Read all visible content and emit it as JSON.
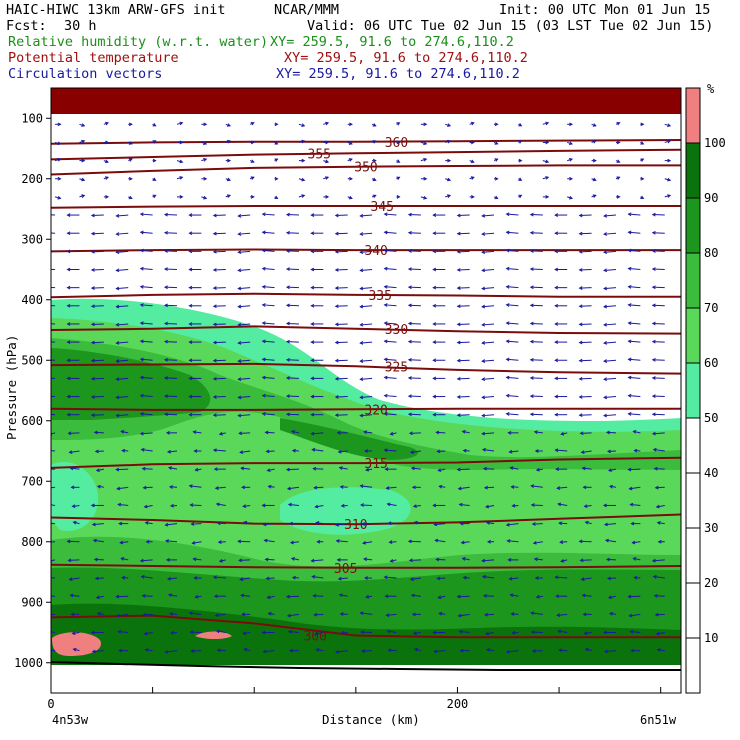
{
  "header": {
    "model": "HAIC-HIWC 13km ARW-GFS init",
    "org": "NCAR/MMM",
    "init": "Init: 00 UTC Mon 01 Jun 15",
    "fcst_label": "Fcst:",
    "fcst_value": "30 h",
    "valid": "Valid: 06 UTC Tue 02 Jun 15 (03 LST Tue 02 Jun 15)",
    "fields": [
      {
        "name": "Relative humidity (w.r.t. water)",
        "xy": "XY= 259.5, 91.6 to 274.6,110.2",
        "color": "#1a8f1a"
      },
      {
        "name": "Potential temperature",
        "xy": "XY= 259.5, 91.6 to 274.6,110.2",
        "color": "#a01010"
      },
      {
        "name": "Circulation vectors",
        "xy": "XY= 259.5, 91.6 to 274.6,110.2",
        "color": "#1a1aa0"
      }
    ]
  },
  "chart_data": {
    "type": "cross-section",
    "xlabel": "Distance (km)",
    "ylabel": "Pressure (hPa)",
    "x_ticks": [
      0,
      200
    ],
    "x_range": [
      0,
      310
    ],
    "y_ticks": [
      100,
      200,
      300,
      400,
      500,
      600,
      700,
      800,
      900,
      1000
    ],
    "y_range": [
      50,
      1050
    ],
    "x_end_labels": {
      "left": "4n53w",
      "right": "6n51w"
    },
    "humidity_colorbar": {
      "unit": "%",
      "levels": [
        10,
        20,
        30,
        40,
        50,
        60,
        70,
        80,
        90,
        100
      ],
      "colors": [
        "#ffffff",
        "#ffffff",
        "#ffffff",
        "#ffffff",
        "#ffffff",
        "#54eca0",
        "#5ad85a",
        "#3cbc3c",
        "#1c961c",
        "#0b730b",
        "#f08080"
      ]
    },
    "theta_contours": [
      {
        "value": 360,
        "label_x": 170,
        "points": [
          [
            0,
            142
          ],
          [
            50,
            140
          ],
          [
            100,
            139
          ],
          [
            150,
            139
          ],
          [
            200,
            138
          ],
          [
            250,
            137
          ],
          [
            310,
            136
          ]
        ]
      },
      {
        "value": 355,
        "label_x": 132,
        "points": [
          [
            0,
            168
          ],
          [
            50,
            164
          ],
          [
            100,
            160
          ],
          [
            150,
            158
          ],
          [
            200,
            156
          ],
          [
            250,
            154
          ],
          [
            310,
            152
          ]
        ]
      },
      {
        "value": 350,
        "label_x": 155,
        "points": [
          [
            0,
            193
          ],
          [
            50,
            187
          ],
          [
            100,
            182
          ],
          [
            150,
            180
          ],
          [
            200,
            179
          ],
          [
            250,
            178
          ],
          [
            310,
            178
          ]
        ]
      },
      {
        "value": 345,
        "label_x": 163,
        "points": [
          [
            0,
            248
          ],
          [
            50,
            246
          ],
          [
            100,
            245
          ],
          [
            150,
            245
          ],
          [
            200,
            245
          ],
          [
            250,
            245
          ],
          [
            310,
            245
          ]
        ]
      },
      {
        "value": 340,
        "label_x": 160,
        "points": [
          [
            0,
            320
          ],
          [
            50,
            318
          ],
          [
            100,
            317
          ],
          [
            150,
            318
          ],
          [
            200,
            318
          ],
          [
            250,
            318
          ],
          [
            310,
            318
          ]
        ]
      },
      {
        "value": 335,
        "label_x": 162,
        "points": [
          [
            0,
            396
          ],
          [
            50,
            392
          ],
          [
            100,
            390
          ],
          [
            150,
            392
          ],
          [
            200,
            393
          ],
          [
            250,
            395
          ],
          [
            310,
            395
          ]
        ]
      },
      {
        "value": 330,
        "label_x": 170,
        "points": [
          [
            0,
            450
          ],
          [
            50,
            448
          ],
          [
            100,
            444
          ],
          [
            150,
            448
          ],
          [
            200,
            452
          ],
          [
            250,
            455
          ],
          [
            310,
            456
          ]
        ]
      },
      {
        "value": 325,
        "label_x": 170,
        "points": [
          [
            0,
            508
          ],
          [
            50,
            507
          ],
          [
            100,
            506
          ],
          [
            150,
            510
          ],
          [
            200,
            516
          ],
          [
            250,
            520
          ],
          [
            310,
            522
          ]
        ]
      },
      {
        "value": 320,
        "label_x": 160,
        "points": [
          [
            0,
            580
          ],
          [
            50,
            582
          ],
          [
            100,
            582
          ],
          [
            150,
            581
          ],
          [
            200,
            580
          ],
          [
            250,
            580
          ],
          [
            310,
            580
          ]
        ]
      },
      {
        "value": 315,
        "label_x": 160,
        "points": [
          [
            0,
            678
          ],
          [
            50,
            672
          ],
          [
            100,
            670
          ],
          [
            150,
            670
          ],
          [
            200,
            669
          ],
          [
            250,
            664
          ],
          [
            310,
            661
          ]
        ]
      },
      {
        "value": 310,
        "label_x": 150,
        "points": [
          [
            0,
            760
          ],
          [
            50,
            764
          ],
          [
            100,
            770
          ],
          [
            150,
            771
          ],
          [
            200,
            768
          ],
          [
            250,
            762
          ],
          [
            310,
            755
          ]
        ]
      },
      {
        "value": 305,
        "label_x": 145,
        "points": [
          [
            0,
            838
          ],
          [
            50,
            840
          ],
          [
            100,
            842
          ],
          [
            150,
            843
          ],
          [
            200,
            843
          ],
          [
            250,
            842
          ],
          [
            310,
            840
          ]
        ]
      },
      {
        "value": 300,
        "label_x": 130,
        "points": [
          [
            0,
            925
          ],
          [
            50,
            922
          ],
          [
            100,
            935
          ],
          [
            150,
            955
          ],
          [
            200,
            958
          ],
          [
            250,
            958
          ],
          [
            310,
            958
          ]
        ]
      }
    ]
  }
}
